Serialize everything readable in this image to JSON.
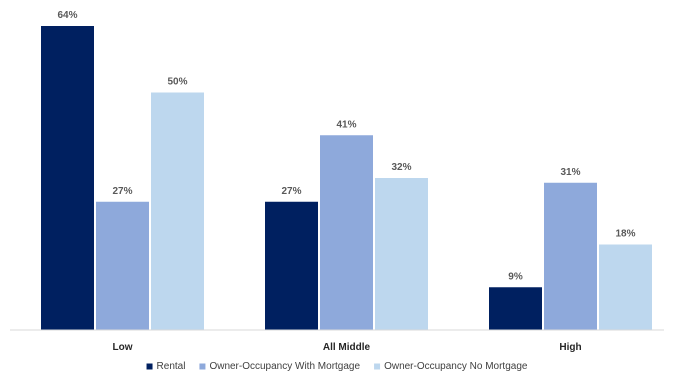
{
  "chart_data": {
    "type": "bar",
    "categories": [
      "Low",
      "All Middle",
      "High"
    ],
    "series": [
      {
        "name": "Rental",
        "values": [
          64,
          27,
          9
        ],
        "labels": [
          "64%",
          "27%",
          "9%"
        ],
        "color": "#002060"
      },
      {
        "name": "Owner-Occupancy With Mortgage",
        "values": [
          27,
          41,
          31
        ],
        "labels": [
          "27%",
          "41%",
          "31%"
        ],
        "color": "#8EA9DB"
      },
      {
        "name": "Owner-Occupancy No Mortgage",
        "values": [
          50,
          32,
          18
        ],
        "labels": [
          "50%",
          "32%",
          "18%"
        ],
        "color": "#BDD7EE"
      }
    ],
    "ylim": [
      0,
      64
    ],
    "grid": false,
    "legend_position": "bottom"
  }
}
